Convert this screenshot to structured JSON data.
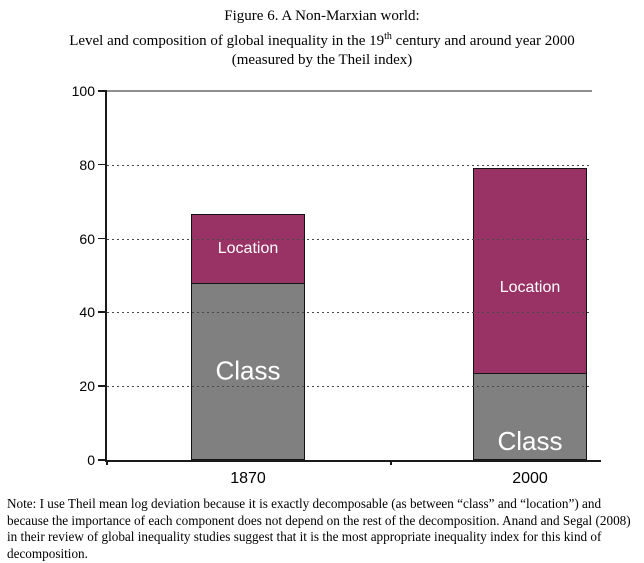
{
  "figure": {
    "title_line1": "Figure 6. A Non-Marxian world:",
    "title_line2_pre": "Level and composition of global inequality in the 19",
    "title_line2_sup": "th",
    "title_line2_post": " century and around year 2000",
    "title_line3": "(measured by the Theil index)",
    "note": "Note: I use Theil mean log deviation because it is exactly decomposable (as between “class” and “location”) and because the importance of each component does not depend on the rest of the decomposition. Anand and Segal (2008) in their review of global inequality studies suggest that it is the most appropriate inequality index for this kind of decomposition."
  },
  "chart_data": {
    "type": "bar",
    "stacked": true,
    "title": "Figure 6. A Non-Marxian world: Level and composition of global inequality in the 19th century and around year 2000 (measured by the Theil index)",
    "categories": [
      "1870",
      "2000"
    ],
    "series": [
      {
        "name": "Class",
        "color": "#808080",
        "values": [
          48,
          23.5
        ]
      },
      {
        "name": "Location",
        "color": "#993366",
        "values": [
          19,
          56
        ]
      }
    ],
    "totals": [
      67,
      79.5
    ],
    "xlabel": "",
    "ylabel": "",
    "ylim": [
      0,
      100
    ],
    "yticks": [
      0,
      20,
      40,
      60,
      80,
      100
    ],
    "grid": "horizontal dashed lines every 20; solid gray line at 100",
    "legend": "series labels printed in white inside bar segments",
    "label_text_color": "#ffffff",
    "axis_color": "#1a1a1a"
  }
}
